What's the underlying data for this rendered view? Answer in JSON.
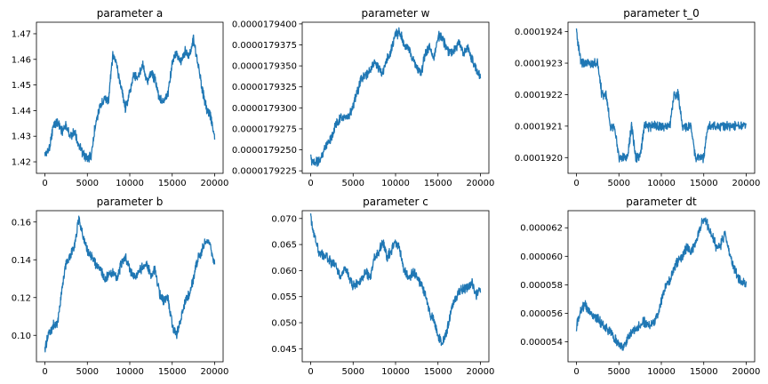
{
  "chart_data": [
    {
      "type": "line",
      "title": "parameter a",
      "xlabel": "",
      "ylabel": "",
      "xlim": [
        -1000,
        21000
      ],
      "ylim": [
        1.4155,
        1.4745
      ],
      "xticks": [
        0,
        5000,
        10000,
        15000,
        20000
      ],
      "xtick_labels": [
        "0",
        "5000",
        "10000",
        "15000",
        "20000"
      ],
      "yticks": [
        1.42,
        1.43,
        1.44,
        1.45,
        1.46,
        1.47
      ],
      "ytick_labels": [
        "1.42",
        "1.43",
        "1.44",
        "1.45",
        "1.46",
        "1.47"
      ],
      "color": "#1f77b4",
      "x": [
        0,
        500,
        1000,
        1500,
        2000,
        2500,
        3000,
        3500,
        4000,
        4500,
        5000,
        5500,
        6000,
        6500,
        7000,
        7500,
        8000,
        8500,
        9000,
        9500,
        10000,
        10500,
        11000,
        11500,
        12000,
        12500,
        13000,
        13500,
        14000,
        14500,
        15000,
        15500,
        16000,
        16500,
        17000,
        17500,
        18000,
        18500,
        19000,
        19500,
        20000
      ],
      "y": [
        1.423,
        1.425,
        1.434,
        1.436,
        1.432,
        1.434,
        1.43,
        1.432,
        1.426,
        1.423,
        1.421,
        1.423,
        1.436,
        1.441,
        1.445,
        1.444,
        1.462,
        1.457,
        1.449,
        1.441,
        1.447,
        1.454,
        1.453,
        1.459,
        1.451,
        1.455,
        1.452,
        1.445,
        1.443,
        1.447,
        1.458,
        1.463,
        1.459,
        1.463,
        1.461,
        1.468,
        1.459,
        1.449,
        1.441,
        1.438,
        1.43
      ]
    },
    {
      "type": "line",
      "title": "parameter w",
      "xlabel": "",
      "ylabel": "",
      "xlim": [
        -1000,
        21000
      ],
      "ylim": [
        1.79222e-05,
        1.79402e-05
      ],
      "xticks": [
        0,
        5000,
        10000,
        15000,
        20000
      ],
      "xtick_labels": [
        "0",
        "5000",
        "10000",
        "15000",
        "20000"
      ],
      "yticks": [
        1.79225e-05,
        1.7925e-05,
        1.79275e-05,
        1.793e-05,
        1.79325e-05,
        1.7935e-05,
        1.79375e-05,
        1.794e-05
      ],
      "ytick_labels": [
        "0.0000179225",
        "0.0000179250",
        "0.0000179275",
        "0.0000179300",
        "0.0000179325",
        "0.0000179350",
        "0.0000179375",
        "0.0000179400"
      ],
      "color": "#1f77b4",
      "x": [
        0,
        500,
        1000,
        1500,
        2000,
        2500,
        3000,
        3500,
        4000,
        4500,
        5000,
        5500,
        6000,
        6500,
        7000,
        7500,
        8000,
        8500,
        9000,
        9500,
        10000,
        10500,
        11000,
        11500,
        12000,
        12500,
        13000,
        13500,
        14000,
        14500,
        15000,
        15500,
        16000,
        16500,
        17000,
        17500,
        18000,
        18500,
        19000,
        19500,
        20000
      ],
      "y": [
        1.79238e-05,
        1.79236e-05,
        1.79235e-05,
        1.79248e-05,
        1.7926e-05,
        1.79265e-05,
        1.79282e-05,
        1.79288e-05,
        1.79287e-05,
        1.7929e-05,
        1.79303e-05,
        1.7932e-05,
        1.79335e-05,
        1.7934e-05,
        1.79345e-05,
        1.79355e-05,
        1.79346e-05,
        1.79343e-05,
        1.79358e-05,
        1.7937e-05,
        1.79388e-05,
        1.7939e-05,
        1.79375e-05,
        1.79372e-05,
        1.79358e-05,
        1.79348e-05,
        1.7934e-05,
        1.79365e-05,
        1.79372e-05,
        1.79358e-05,
        1.79385e-05,
        1.79385e-05,
        1.7937e-05,
        1.79365e-05,
        1.7937e-05,
        1.79378e-05,
        1.79365e-05,
        1.79372e-05,
        1.79358e-05,
        1.79348e-05,
        1.79335e-05
      ]
    },
    {
      "type": "line",
      "title": "parameter t_0",
      "xlabel": "",
      "ylabel": "",
      "xlim": [
        -1000,
        21000
      ],
      "ylim": [
        0.00019195,
        0.00019243
      ],
      "xticks": [
        0,
        5000,
        10000,
        15000,
        20000
      ],
      "xtick_labels": [
        "0",
        "5000",
        "10000",
        "15000",
        "20000"
      ],
      "yticks": [
        0.000192,
        0.0001921,
        0.0001922,
        0.0001923,
        0.0001924
      ],
      "ytick_labels": [
        "0.0001920",
        "0.0001921",
        "0.0001922",
        "0.0001923",
        "0.0001924"
      ],
      "color": "#1f77b4",
      "x": [
        0,
        500,
        1000,
        1500,
        2000,
        2500,
        3000,
        3500,
        4000,
        4500,
        5000,
        5500,
        6000,
        6500,
        7000,
        7500,
        8000,
        8500,
        9000,
        9500,
        10000,
        10500,
        11000,
        11500,
        12000,
        12500,
        13000,
        13500,
        14000,
        14500,
        15000,
        15500,
        16000,
        16500,
        17000,
        17500,
        18000,
        18500,
        19000,
        19500,
        20000
      ],
      "y": [
        0.0001924,
        0.0001923,
        0.0001923,
        0.0001923,
        0.0001923,
        0.0001923,
        0.0001922,
        0.0001922,
        0.0001921,
        0.0001921,
        0.000192,
        0.000192,
        0.000192,
        0.0001921,
        0.000192,
        0.000192,
        0.0001921,
        0.0001921,
        0.0001921,
        0.0001921,
        0.0001921,
        0.0001921,
        0.0001921,
        0.0001922,
        0.0001922,
        0.0001921,
        0.0001921,
        0.0001921,
        0.000192,
        0.000192,
        0.000192,
        0.0001921,
        0.0001921,
        0.0001921,
        0.0001921,
        0.0001921,
        0.0001921,
        0.0001921,
        0.0001921,
        0.0001921,
        0.0001921
      ]
    },
    {
      "type": "line",
      "title": "parameter b",
      "xlabel": "",
      "ylabel": "",
      "xlim": [
        -1000,
        21000
      ],
      "ylim": [
        0.086,
        0.166
      ],
      "xticks": [
        0,
        5000,
        10000,
        15000,
        20000
      ],
      "xtick_labels": [
        "0",
        "5000",
        "10000",
        "15000",
        "20000"
      ],
      "yticks": [
        0.1,
        0.12,
        0.14,
        0.16
      ],
      "ytick_labels": [
        "0.10",
        "0.12",
        "0.14",
        "0.16"
      ],
      "color": "#1f77b4",
      "x": [
        0,
        500,
        1000,
        1500,
        2000,
        2500,
        3000,
        3500,
        4000,
        4500,
        5000,
        5500,
        6000,
        6500,
        7000,
        7500,
        8000,
        8500,
        9000,
        9500,
        10000,
        10500,
        11000,
        11500,
        12000,
        12500,
        13000,
        13500,
        14000,
        14500,
        15000,
        15500,
        16000,
        16500,
        17000,
        17500,
        18000,
        18500,
        19000,
        19500,
        20000
      ],
      "y": [
        0.092,
        0.102,
        0.105,
        0.106,
        0.125,
        0.138,
        0.142,
        0.148,
        0.162,
        0.152,
        0.145,
        0.142,
        0.138,
        0.135,
        0.13,
        0.132,
        0.133,
        0.13,
        0.138,
        0.142,
        0.135,
        0.13,
        0.133,
        0.136,
        0.138,
        0.132,
        0.135,
        0.122,
        0.118,
        0.12,
        0.105,
        0.1,
        0.108,
        0.118,
        0.122,
        0.13,
        0.14,
        0.145,
        0.15,
        0.148,
        0.138
      ]
    },
    {
      "type": "line",
      "title": "parameter c",
      "xlabel": "",
      "ylabel": "",
      "xlim": [
        -1000,
        21000
      ],
      "ylim": [
        0.0425,
        0.0715
      ],
      "xticks": [
        0,
        5000,
        10000,
        15000,
        20000
      ],
      "xtick_labels": [
        "0",
        "5000",
        "10000",
        "15000",
        "20000"
      ],
      "yticks": [
        0.045,
        0.05,
        0.055,
        0.06,
        0.065,
        0.07
      ],
      "ytick_labels": [
        "0.045",
        "0.050",
        "0.055",
        "0.060",
        "0.065",
        "0.070"
      ],
      "color": "#1f77b4",
      "x": [
        0,
        500,
        1000,
        1500,
        2000,
        2500,
        3000,
        3500,
        4000,
        4500,
        5000,
        5500,
        6000,
        6500,
        7000,
        7500,
        8000,
        8500,
        9000,
        9500,
        10000,
        10500,
        11000,
        11500,
        12000,
        12500,
        13000,
        13500,
        14000,
        14500,
        15000,
        15500,
        16000,
        16500,
        17000,
        17500,
        18000,
        18500,
        19000,
        19500,
        20000
      ],
      "y": [
        0.07,
        0.0665,
        0.0635,
        0.063,
        0.0625,
        0.0615,
        0.061,
        0.0585,
        0.0605,
        0.059,
        0.057,
        0.0575,
        0.058,
        0.06,
        0.0585,
        0.0625,
        0.0635,
        0.0655,
        0.0625,
        0.064,
        0.0655,
        0.064,
        0.06,
        0.0585,
        0.0595,
        0.059,
        0.0575,
        0.0555,
        0.052,
        0.0505,
        0.0475,
        0.046,
        0.048,
        0.052,
        0.0545,
        0.056,
        0.0565,
        0.057,
        0.0575,
        0.0555,
        0.0565
      ]
    },
    {
      "type": "line",
      "title": "parameter dt",
      "xlabel": "",
      "ylabel": "",
      "xlim": [
        -1000,
        21000
      ],
      "ylim": [
        5.26e-05,
        6.32e-05
      ],
      "xticks": [
        0,
        5000,
        10000,
        15000,
        20000
      ],
      "xtick_labels": [
        "0",
        "5000",
        "10000",
        "15000",
        "20000"
      ],
      "yticks": [
        5.4e-05,
        5.6e-05,
        5.8e-05,
        6e-05,
        6.2e-05
      ],
      "ytick_labels": [
        "0.000054",
        "0.000056",
        "0.000058",
        "0.000060",
        "0.000062"
      ],
      "color": "#1f77b4",
      "x": [
        0,
        500,
        1000,
        1500,
        2000,
        2500,
        3000,
        3500,
        4000,
        4500,
        5000,
        5500,
        6000,
        6500,
        7000,
        7500,
        8000,
        8500,
        9000,
        9500,
        10000,
        10500,
        11000,
        11500,
        12000,
        12500,
        13000,
        13500,
        14000,
        14500,
        15000,
        15500,
        16000,
        16500,
        17000,
        17500,
        18000,
        18500,
        19000,
        19500,
        20000
      ],
      "y": [
        5.5e-05,
        5.63e-05,
        5.66e-05,
        5.62e-05,
        5.58e-05,
        5.56e-05,
        5.53e-05,
        5.49e-05,
        5.47e-05,
        5.42e-05,
        5.38e-05,
        5.36e-05,
        5.41e-05,
        5.46e-05,
        5.49e-05,
        5.52e-05,
        5.54e-05,
        5.51e-05,
        5.53e-05,
        5.58e-05,
        5.69e-05,
        5.78e-05,
        5.83e-05,
        5.92e-05,
        5.97e-05,
        6.01e-05,
        6.06e-05,
        6.03e-05,
        6.09e-05,
        6.18e-05,
        6.27e-05,
        6.21e-05,
        6.14e-05,
        6.06e-05,
        6.08e-05,
        6.16e-05,
        6.02e-05,
        5.93e-05,
        5.86e-05,
        5.82e-05,
        5.8e-05
      ]
    }
  ]
}
